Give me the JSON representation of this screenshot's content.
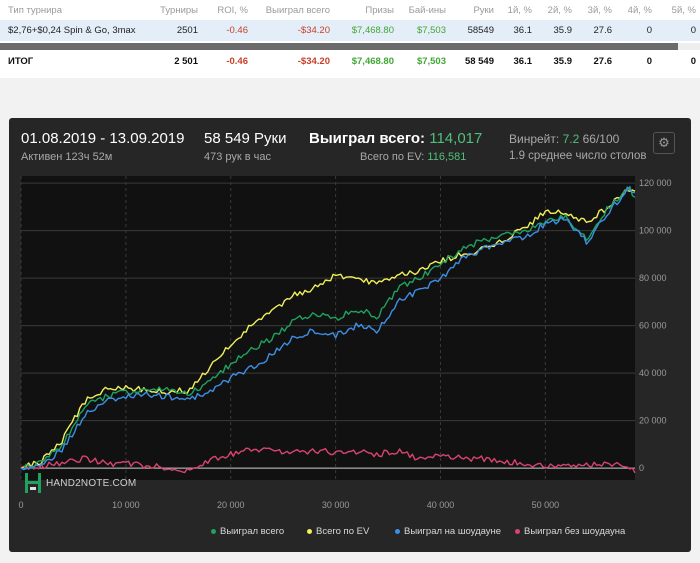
{
  "table": {
    "headers": [
      "Тип турнира",
      "Турниры",
      "ROI, %",
      "Выиграл всего",
      "Призы",
      "Бай-ины",
      "Руки",
      "1й, %",
      "2й, %",
      "3й, %",
      "4й, %",
      "5й, %"
    ],
    "row": [
      "$2,76+$0,24 Spin & Go, 3max",
      "2501",
      "-0.46",
      "-$34.20",
      "$7,468.80",
      "$7,503",
      "58549",
      "36.1",
      "35.9",
      "27.6",
      "0",
      "0"
    ],
    "total": [
      "ИТОГ",
      "2 501",
      "-0.46",
      "-$34.20",
      "$7,468.80",
      "$7,503",
      "58 549",
      "36.1",
      "35.9",
      "27.6",
      "0",
      "0"
    ]
  },
  "stats": {
    "date_range": "01.08.2019 - 13.09.2019",
    "active": "Активен 123ч 52м",
    "hands": "58 549 Руки",
    "hands_per_hour": "473 рук в час",
    "won_label": "Выиграл всего:",
    "won_value": "114,017",
    "ev_label": "Всего по EV:",
    "ev_value": "116,581",
    "winrate_label": "Винрейт:",
    "winrate_value": "7.2",
    "winrate_base": "66/100",
    "tables": "1.9 среднее число столов"
  },
  "logo_text": "HAND2NOTE.COM",
  "colors": {
    "won": "#1fa160",
    "ev": "#f2ef5a",
    "showdown": "#3d8fe6",
    "nonshowdown": "#d8446f",
    "positive": "#41a633",
    "negative": "#c8402a"
  },
  "chart_data": {
    "type": "line",
    "xlabel": "",
    "ylabel": "",
    "xlim": [
      0,
      58549
    ],
    "ylim": [
      -5000,
      123000
    ],
    "x_ticks": [
      0,
      10000,
      20000,
      30000,
      40000,
      50000
    ],
    "x_tick_labels": [
      "0",
      "10 000",
      "20 000",
      "30 000",
      "40 000",
      "50 000"
    ],
    "y_ticks": [
      0,
      20000,
      40000,
      60000,
      80000,
      100000,
      120000
    ],
    "y_tick_labels": [
      "0",
      "20 000",
      "40 000",
      "60 000",
      "80 000",
      "100 000",
      "120 000"
    ],
    "grid": true,
    "legend_position": "bottom",
    "x": [
      0,
      2000,
      4000,
      6000,
      8000,
      10000,
      12000,
      14000,
      16000,
      18000,
      20000,
      22000,
      24000,
      26000,
      28000,
      30000,
      32000,
      34000,
      36000,
      38000,
      40000,
      42000,
      44000,
      46000,
      48000,
      50000,
      52000,
      54000,
      56000,
      58000,
      58549
    ],
    "series": [
      {
        "name": "Выиграл всего",
        "color_key": "won",
        "values": [
          0,
          2000,
          10000,
          26000,
          30000,
          32000,
          33000,
          33000,
          31000,
          36000,
          44000,
          50000,
          55000,
          62000,
          65000,
          63000,
          67000,
          64000,
          76000,
          80000,
          86000,
          92000,
          96000,
          98000,
          99000,
          104000,
          106000,
          96000,
          110000,
          118000,
          114017
        ]
      },
      {
        "name": "Всего по EV",
        "color_key": "ev",
        "values": [
          0,
          3000,
          12000,
          28000,
          33000,
          34000,
          33000,
          32000,
          33000,
          42000,
          52000,
          60000,
          66000,
          73000,
          76000,
          81000,
          79000,
          78000,
          82000,
          83000,
          87000,
          90000,
          92000,
          96000,
          101000,
          108000,
          107000,
          104000,
          110000,
          118000,
          116581
        ]
      },
      {
        "name": "Выиграл на шоудауне",
        "color_key": "showdown",
        "values": [
          0,
          1000,
          8000,
          22000,
          28000,
          30000,
          31000,
          30000,
          29000,
          32000,
          38000,
          42000,
          48000,
          55000,
          58000,
          56000,
          60000,
          58000,
          70000,
          75000,
          80000,
          88000,
          92000,
          95000,
          97000,
          103000,
          105000,
          95000,
          108000,
          118000,
          116000
        ]
      },
      {
        "name": "Выиграл без шоудауна",
        "color_key": "nonshowdown",
        "values": [
          0,
          1000,
          2000,
          4000,
          2000,
          2000,
          1000,
          0,
          -1000,
          3000,
          6000,
          8000,
          7000,
          7000,
          7000,
          7000,
          7000,
          6000,
          7000,
          4000,
          6000,
          4000,
          4000,
          3000,
          2000,
          1000,
          1000,
          1000,
          2000,
          0,
          -2000
        ]
      }
    ]
  },
  "legend": [
    {
      "label": "Выиграл всего",
      "color_key": "won"
    },
    {
      "label": "Всего по EV",
      "color_key": "ev"
    },
    {
      "label": "Выиграл на шоудауне",
      "color_key": "showdown"
    },
    {
      "label": "Выиграл без шоудауна",
      "color_key": "nonshowdown"
    }
  ]
}
